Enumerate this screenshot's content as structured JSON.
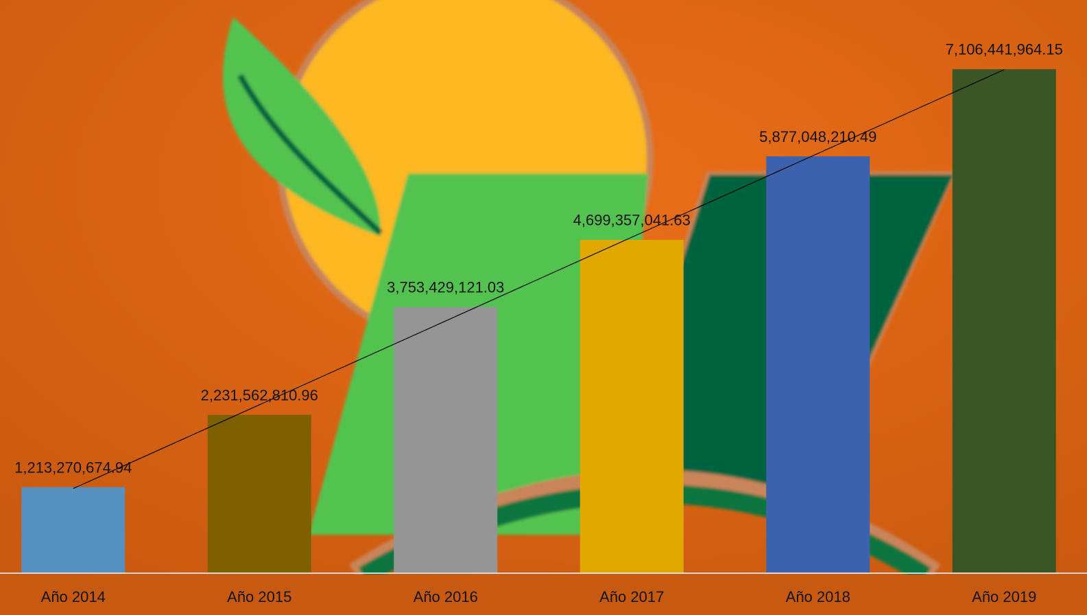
{
  "chart_data": {
    "type": "bar",
    "categories": [
      "Año 2014",
      "Año 2015",
      "Año 2016",
      "Año 2017",
      "Año 2018",
      "Año 2019"
    ],
    "values": [
      1213270674.94,
      2231562810.96,
      3753429121.03,
      4699357041.63,
      5877048210.49,
      7106441964.15
    ],
    "value_labels": [
      "1,213,270,674.94",
      "2,231,562,810.96",
      "3,753,429,121.03",
      "4,699,357,041.63",
      "5,877,048,210.49",
      "7,106,441,964.15"
    ],
    "colors": [
      "#5590c0",
      "#7f6000",
      "#959595",
      "#e0a800",
      "#3d62ad",
      "#3b5524"
    ],
    "ylim": [
      0,
      8000000000
    ],
    "trendline": "linear"
  }
}
